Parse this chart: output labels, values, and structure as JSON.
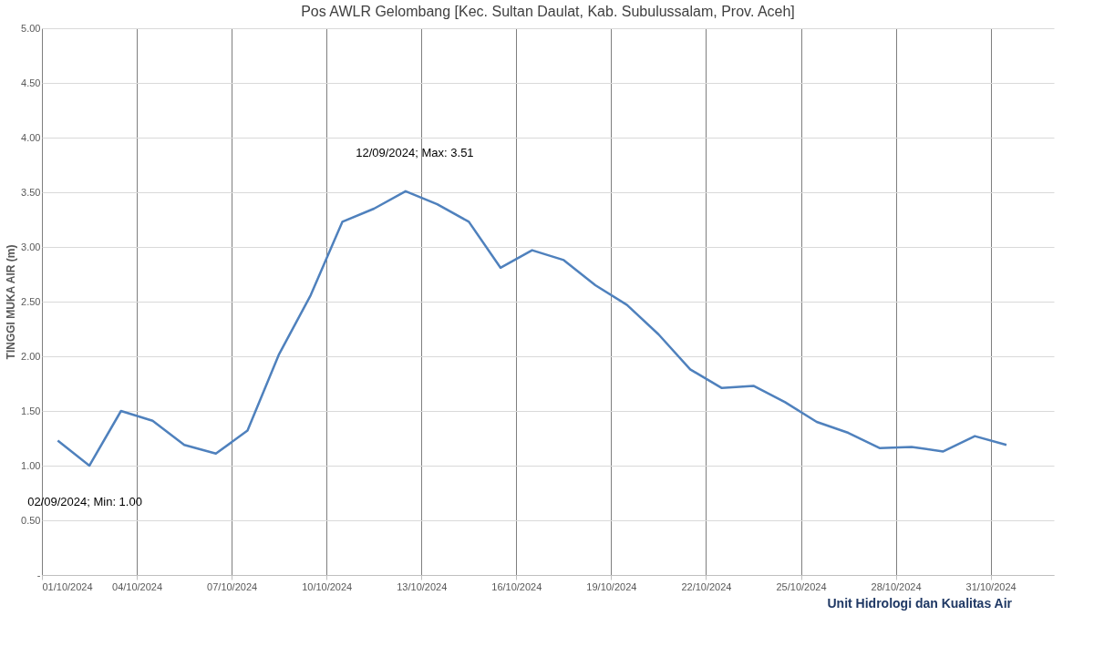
{
  "chart_data": {
    "type": "line",
    "title": "Pos AWLR Gelombang [Kec. Sultan Daulat, Kab. Subulussalam, Prov. Aceh]",
    "ylabel": "TINGGI MUKA AIR (m)",
    "x": [
      "2024-10-01T12:00",
      "2024-10-02T12:00",
      "2024-10-03T12:00",
      "2024-10-04T12:00",
      "2024-10-05T12:00",
      "2024-10-06T12:00",
      "2024-10-07T12:00",
      "2024-10-08T12:00",
      "2024-10-09T12:00",
      "2024-10-10T12:00",
      "2024-10-11T12:00",
      "2024-10-12T12:00",
      "2024-10-13T12:00",
      "2024-10-14T12:00",
      "2024-10-15T12:00",
      "2024-10-16T12:00",
      "2024-10-17T12:00",
      "2024-10-18T12:00",
      "2024-10-19T12:00",
      "2024-10-20T12:00",
      "2024-10-21T12:00",
      "2024-10-22T12:00",
      "2024-10-23T12:00",
      "2024-10-24T12:00",
      "2024-10-25T12:00",
      "2024-10-26T12:00",
      "2024-10-27T12:00",
      "2024-10-28T12:00",
      "2024-10-29T12:00",
      "2024-10-30T12:00",
      "2024-10-31T12:00"
    ],
    "series": [
      {
        "color": "#4f81bd",
        "values": [
          1.23,
          1.0,
          1.5,
          1.41,
          1.19,
          1.11,
          1.32,
          2.02,
          2.56,
          3.23,
          3.35,
          3.51,
          3.39,
          3.23,
          2.81,
          2.97,
          2.88,
          2.65,
          2.47,
          2.2,
          1.88,
          1.71,
          1.73,
          1.58,
          1.4,
          1.3,
          1.16,
          1.17,
          1.13,
          1.27,
          1.19
        ]
      }
    ],
    "xlim": [
      "2024-10-01",
      "2024-11-02"
    ],
    "xticks": [
      {
        "value": "2024-10-01",
        "label": "01/10/2024"
      },
      {
        "value": "2024-10-04",
        "label": "04/10/2024"
      },
      {
        "value": "2024-10-07",
        "label": "07/10/2024"
      },
      {
        "value": "2024-10-10",
        "label": "10/10/2024"
      },
      {
        "value": "2024-10-13",
        "label": "13/10/2024"
      },
      {
        "value": "2024-10-16",
        "label": "16/10/2024"
      },
      {
        "value": "2024-10-19",
        "label": "19/10/2024"
      },
      {
        "value": "2024-10-22",
        "label": "22/10/2024"
      },
      {
        "value": "2024-10-25",
        "label": "25/10/2024"
      },
      {
        "value": "2024-10-28",
        "label": "28/10/2024"
      },
      {
        "value": "2024-10-31",
        "label": "31/10/2024"
      }
    ],
    "ylim": [
      0,
      5
    ],
    "yticks": [
      {
        "value": 0,
        "label": "-"
      },
      {
        "value": 0.5,
        "label": "0.50"
      },
      {
        "value": 1,
        "label": "1.00"
      },
      {
        "value": 1.5,
        "label": "1.50"
      },
      {
        "value": 2,
        "label": "2.00"
      },
      {
        "value": 2.5,
        "label": "2.50"
      },
      {
        "value": 3,
        "label": "3.00"
      },
      {
        "value": 3.5,
        "label": "3.50"
      },
      {
        "value": 4,
        "label": "4.00"
      },
      {
        "value": 4.5,
        "label": "4.50"
      },
      {
        "value": 5,
        "label": "5.00"
      }
    ],
    "grid": true,
    "line_style": "solid",
    "marker": "none",
    "annotations": [
      {
        "text": "02/09/2024; Min: 1.00",
        "x": "2024-10-02T12:00",
        "y": 1.0
      },
      {
        "text": "12/09/2024; Max: 3.51",
        "x": "2024-10-12T12:00",
        "y": 3.51
      },
      "Unit Hidrologi dan Kualitas Air"
    ]
  }
}
